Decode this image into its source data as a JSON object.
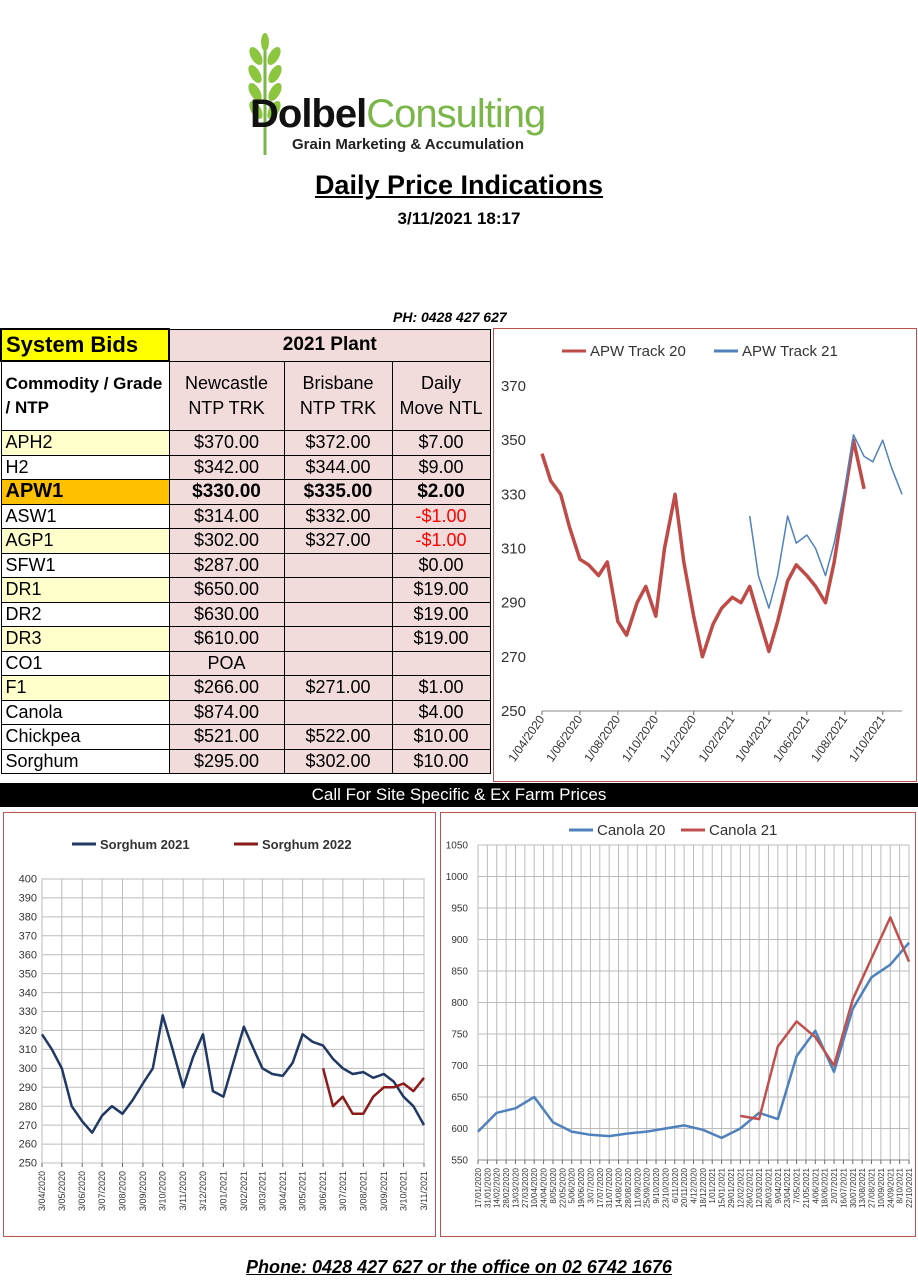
{
  "logo": {
    "brand_bold": "Dolbel",
    "brand_light": "Consulting",
    "tagline": "Grain Marketing & Accumulation"
  },
  "header": {
    "title": "Daily Price Indications",
    "datetime": "3/11/2021 18:17",
    "phone": "PH: 0428 427 627"
  },
  "table": {
    "system_bids": "System Bids",
    "plant": "2021 Plant",
    "col_commodity": "Commodity / Grade / NTP",
    "col_newcastle": "Newcastle NTP TRK",
    "col_brisbane": "Brisbane NTP TRK",
    "col_move": "Daily Move NTL",
    "rows": [
      {
        "grade": "APH2",
        "newcastle": "$370.00",
        "brisbane": "$372.00",
        "move": "$7.00"
      },
      {
        "grade": "H2",
        "newcastle": "$342.00",
        "brisbane": "$344.00",
        "move": "$9.00"
      },
      {
        "grade": "APW1",
        "newcastle": "$330.00",
        "brisbane": "$335.00",
        "move": "$2.00"
      },
      {
        "grade": "ASW1",
        "newcastle": "$314.00",
        "brisbane": "$332.00",
        "move": "-$1.00"
      },
      {
        "grade": "AGP1",
        "newcastle": "$302.00",
        "brisbane": "$327.00",
        "move": "-$1.00"
      },
      {
        "grade": "SFW1",
        "newcastle": "$287.00",
        "brisbane": "",
        "move": "$0.00"
      },
      {
        "grade": "DR1",
        "newcastle": "$650.00",
        "brisbane": "",
        "move": "$19.00"
      },
      {
        "grade": "DR2",
        "newcastle": "$630.00",
        "brisbane": "",
        "move": "$19.00"
      },
      {
        "grade": "DR3",
        "newcastle": "$610.00",
        "brisbane": "",
        "move": "$19.00"
      },
      {
        "grade": "CO1",
        "newcastle": "POA",
        "brisbane": "",
        "move": ""
      },
      {
        "grade": "F1",
        "newcastle": "$266.00",
        "brisbane": "$271.00",
        "move": "$1.00"
      },
      {
        "grade": "Canola",
        "newcastle": "$874.00",
        "brisbane": "",
        "move": "$4.00"
      },
      {
        "grade": "Chickpea",
        "newcastle": "$521.00",
        "brisbane": "$522.00",
        "move": "$10.00"
      },
      {
        "grade": "Sorghum",
        "newcastle": "$295.00",
        "brisbane": "$302.00",
        "move": "$10.00"
      }
    ]
  },
  "call_banner": "Call For Site Specific & Ex Farm Prices",
  "footer": "Phone: 0428 427 627 or the office on 02 6742 1676",
  "colors": {
    "red_series": "#be4b48",
    "blue_series": "#4f81bd",
    "navy_series": "#1f3864",
    "maroon_series": "#8b1a1a",
    "highlight": "#ffc000",
    "system_bids": "#ffff00",
    "table_fill": "#f2dcdb"
  },
  "chart_data": [
    {
      "type": "line",
      "series": [
        {
          "name": "APW Track 20",
          "color": "#be4b48",
          "x": [
            "1/04/2020",
            "15/04/2020",
            "1/05/2020",
            "15/05/2020",
            "1/06/2020",
            "15/06/2020",
            "1/07/2020",
            "15/07/2020",
            "1/08/2020",
            "15/08/2020",
            "1/09/2020",
            "15/09/2020",
            "1/10/2020",
            "15/10/2020",
            "1/11/2020",
            "15/11/2020",
            "1/12/2020",
            "15/12/2020",
            "1/01/2021",
            "15/01/2021",
            "1/02/2021",
            "15/02/2021",
            "1/03/2021",
            "15/03/2021",
            "1/04/2021",
            "15/04/2021",
            "1/05/2021",
            "15/05/2021",
            "1/06/2021",
            "15/06/2021",
            "1/07/2021",
            "15/07/2021",
            "1/08/2021",
            "15/08/2021",
            "1/09/2021"
          ],
          "y": [
            345,
            335,
            330,
            318,
            306,
            304,
            300,
            305,
            283,
            278,
            290,
            296,
            285,
            310,
            330,
            305,
            285,
            270,
            282,
            288,
            292,
            290,
            296,
            285,
            272,
            283,
            298,
            304,
            300,
            296,
            290,
            305,
            330,
            350,
            332
          ]
        },
        {
          "name": "APW Track 21",
          "color": "#4f81bd",
          "x": [
            "1/03/2021",
            "15/03/2021",
            "1/04/2021",
            "15/04/2021",
            "1/05/2021",
            "15/05/2021",
            "1/06/2021",
            "15/06/2021",
            "1/07/2021",
            "15/07/2021",
            "1/08/2021",
            "15/08/2021",
            "1/09/2021",
            "15/09/2021",
            "1/10/2021",
            "15/10/2021",
            "1/11/2021"
          ],
          "y": [
            322,
            300,
            288,
            300,
            322,
            312,
            315,
            310,
            300,
            312,
            332,
            352,
            344,
            342,
            350,
            340,
            330
          ]
        }
      ],
      "ylim": [
        250,
        370
      ],
      "yticks": [
        250,
        270,
        290,
        310,
        330,
        350,
        370
      ],
      "xticks": [
        "1/04/2020",
        "1/06/2020",
        "1/08/2020",
        "1/10/2020",
        "1/12/2020",
        "1/02/2021",
        "1/04/2021",
        "1/06/2021",
        "1/08/2021",
        "1/10/2021"
      ],
      "legend": "top",
      "grid": false
    },
    {
      "type": "line",
      "series": [
        {
          "name": "Sorghum 2021",
          "color": "#1f3864",
          "x": [
            "3/04/2020",
            "18/04/2020",
            "3/05/2020",
            "18/05/2020",
            "3/06/2020",
            "18/06/2020",
            "3/07/2020",
            "18/07/2020",
            "3/08/2020",
            "18/08/2020",
            "3/09/2020",
            "18/09/2020",
            "3/10/2020",
            "18/10/2020",
            "3/11/2020",
            "18/11/2020",
            "3/12/2020",
            "18/12/2020",
            "3/01/2021",
            "18/01/2021",
            "3/02/2021",
            "18/02/2021",
            "3/03/2021",
            "18/03/2021",
            "3/04/2021",
            "18/04/2021",
            "3/05/2021",
            "18/05/2021",
            "3/06/2021",
            "18/06/2021",
            "3/07/2021",
            "18/07/2021",
            "3/08/2021",
            "18/08/2021",
            "3/09/2021",
            "18/09/2021",
            "3/10/2021",
            "18/10/2021",
            "3/11/2021"
          ],
          "y": [
            318,
            310,
            300,
            280,
            272,
            266,
            275,
            280,
            276,
            283,
            292,
            300,
            328,
            310,
            290,
            306,
            318,
            288,
            285,
            303,
            322,
            310,
            300,
            297,
            296,
            303,
            318,
            314,
            312,
            305,
            300,
            297,
            298,
            295,
            297,
            293,
            285,
            280,
            270
          ]
        },
        {
          "name": "Sorghum 2022",
          "color": "#8b1a1a",
          "x": [
            "3/06/2021",
            "18/06/2021",
            "3/07/2021",
            "18/07/2021",
            "3/08/2021",
            "18/08/2021",
            "3/09/2021",
            "18/09/2021",
            "3/10/2021",
            "18/10/2021",
            "3/11/2021"
          ],
          "y": [
            300,
            280,
            285,
            276,
            276,
            285,
            290,
            290,
            292,
            288,
            295
          ]
        }
      ],
      "ylim": [
        250,
        400
      ],
      "yticks": [
        250,
        260,
        270,
        280,
        290,
        300,
        310,
        320,
        330,
        340,
        350,
        360,
        370,
        380,
        390,
        400
      ],
      "xticks": [
        "3/04/2020",
        "3/05/2020",
        "3/06/2020",
        "3/07/2020",
        "3/08/2020",
        "3/09/2020",
        "3/10/2020",
        "3/11/2020",
        "3/12/2020",
        "3/01/2021",
        "3/02/2021",
        "3/03/2021",
        "3/04/2021",
        "3/05/2021",
        "3/06/2021",
        "3/07/2021",
        "3/08/2021",
        "3/09/2021",
        "3/10/2021",
        "3/11/2021"
      ],
      "legend": "top",
      "grid": true
    },
    {
      "type": "line",
      "series": [
        {
          "name": "Canola 20",
          "color": "#4f81bd",
          "x": [
            "17/01/2020",
            "14/02/2020",
            "13/03/2020",
            "10/04/2020",
            "8/05/2020",
            "5/06/2020",
            "3/07/2020",
            "31/07/2020",
            "28/08/2020",
            "25/09/2020",
            "23/10/2020",
            "20/11/2020",
            "18/12/2020",
            "15/01/2021",
            "12/02/2021",
            "12/03/2021",
            "9/04/2021",
            "7/05/2021",
            "4/06/2021",
            "2/07/2021",
            "30/07/2021",
            "27/08/2021",
            "24/09/2021",
            "22/10/2021"
          ],
          "y": [
            595,
            625,
            632,
            650,
            610,
            595,
            590,
            588,
            592,
            595,
            600,
            605,
            598,
            585,
            600,
            625,
            615,
            715,
            755,
            690,
            790,
            840,
            860,
            895
          ]
        },
        {
          "name": "Canola 21",
          "color": "#c0504d",
          "x": [
            "12/02/2021",
            "12/03/2021",
            "9/04/2021",
            "7/05/2021",
            "4/06/2021",
            "2/07/2021",
            "30/07/2021",
            "27/08/2021",
            "24/09/2021",
            "22/10/2021"
          ],
          "y": [
            620,
            615,
            730,
            770,
            745,
            700,
            805,
            870,
            935,
            865
          ]
        }
      ],
      "ylim": [
        550,
        1050
      ],
      "yticks": [
        550,
        600,
        650,
        700,
        750,
        800,
        850,
        900,
        950,
        1000,
        1050
      ],
      "xticks": [
        "17/01/2020",
        "31/01/2020",
        "14/02/2020",
        "28/02/2020",
        "13/03/2020",
        "27/03/2020",
        "10/04/2020",
        "24/04/2020",
        "8/05/2020",
        "22/05/2020",
        "5/06/2020",
        "19/06/2020",
        "3/07/2020",
        "17/07/2020",
        "31/07/2020",
        "14/08/2020",
        "28/08/2020",
        "11/09/2020",
        "25/09/2020",
        "9/10/2020",
        "23/10/2020",
        "6/11/2020",
        "20/11/2020",
        "4/12/2020",
        "18/12/2020",
        "1/01/2021",
        "15/01/2021",
        "29/01/2021",
        "12/02/2021",
        "26/02/2021",
        "12/03/2021",
        "26/03/2021",
        "9/04/2021",
        "23/04/2021",
        "7/05/2021",
        "21/05/2021",
        "4/06/2021",
        "18/06/2021",
        "2/07/2021",
        "16/07/2021",
        "30/07/2021",
        "13/08/2021",
        "27/08/2021",
        "10/09/2021",
        "24/09/2021",
        "8/10/2021",
        "22/10/2021"
      ],
      "legend": "top",
      "grid": true
    }
  ]
}
